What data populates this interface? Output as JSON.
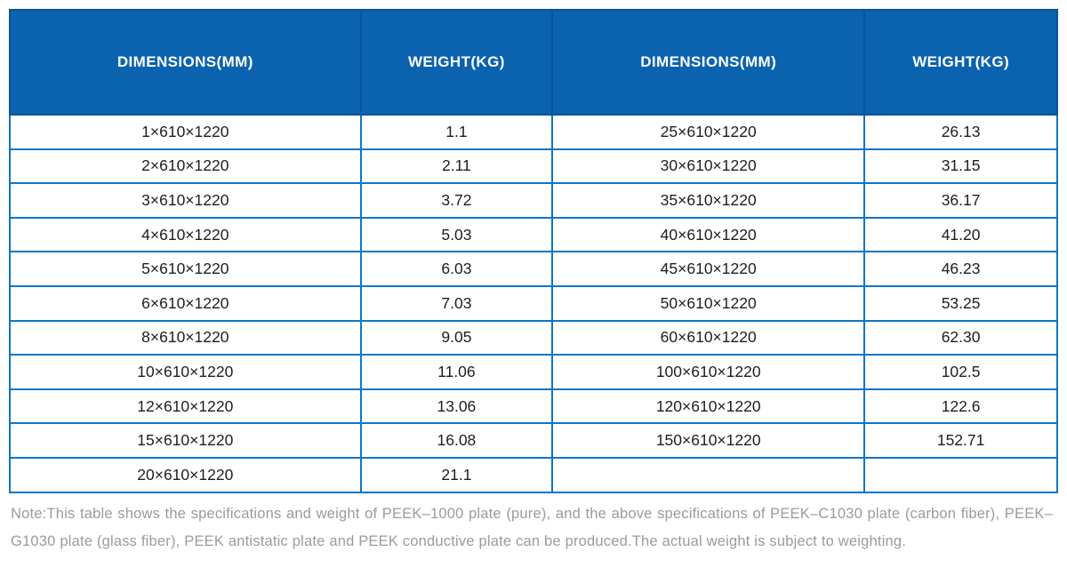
{
  "colors": {
    "header_bg": "#0b62ae",
    "header_divider": "#0a539c",
    "header_text": "#ffffff",
    "grid_line": "#0e76c4",
    "cell_text": "#1e1e1e",
    "note_text": "#9b9b9b",
    "page_bg": "#ffffff"
  },
  "table": {
    "columns": [
      "DIMENSIONS(MM)",
      "WEIGHT(KG)",
      "DIMENSIONS(MM)",
      "WEIGHT(KG)"
    ],
    "rows": [
      [
        "1×610×1220",
        "1.1",
        "25×610×1220",
        "26.13"
      ],
      [
        "2×610×1220",
        "2.11",
        "30×610×1220",
        "31.15"
      ],
      [
        "3×610×1220",
        "3.72",
        "35×610×1220",
        "36.17"
      ],
      [
        "4×610×1220",
        "5.03",
        "40×610×1220",
        "41.20"
      ],
      [
        "5×610×1220",
        "6.03",
        "45×610×1220",
        "46.23"
      ],
      [
        "6×610×1220",
        "7.03",
        "50×610×1220",
        "53.25"
      ],
      [
        "8×610×1220",
        "9.05",
        "60×610×1220",
        "62.30"
      ],
      [
        "10×610×1220",
        "11.06",
        "100×610×1220",
        "102.5"
      ],
      [
        "12×610×1220",
        "13.06",
        "120×610×1220",
        "122.6"
      ],
      [
        "15×610×1220",
        "16.08",
        "150×610×1220",
        "152.71"
      ],
      [
        "20×610×1220",
        "21.1",
        "",
        ""
      ]
    ]
  },
  "note": {
    "text": "Note:This table shows the specifications and weight of PEEK–1000 plate (pure), and the above specifications of PEEK–C1030 plate (carbon fiber), PEEK–G1030 plate (glass fiber), PEEK antistatic plate and PEEK conductive plate can be produced.The actual weight is subject to weighting."
  }
}
